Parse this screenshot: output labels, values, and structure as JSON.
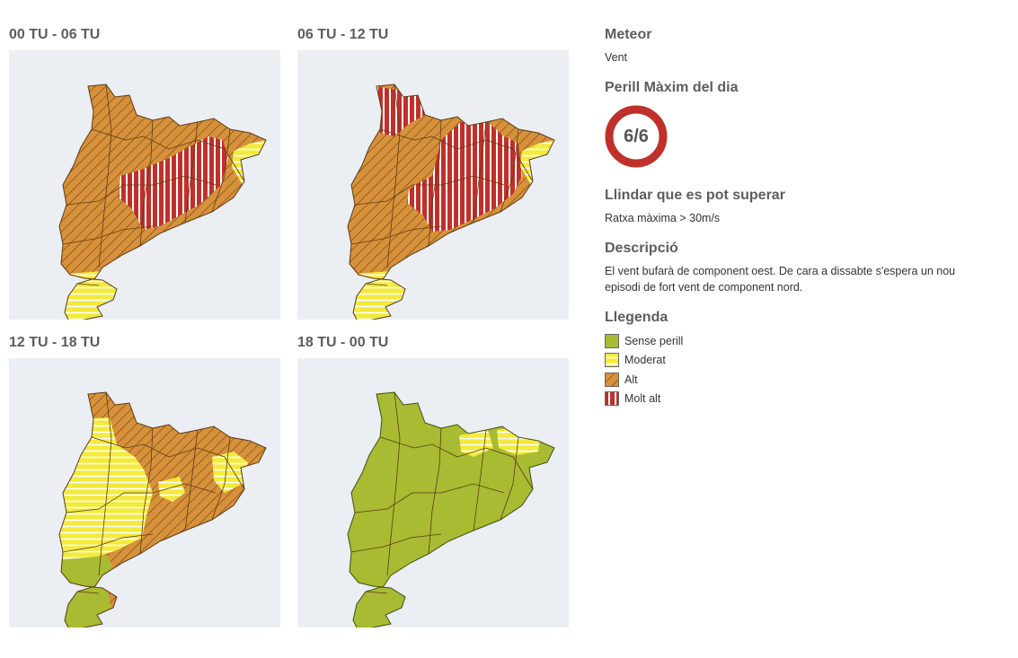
{
  "panels": [
    {
      "title": "00 TU - 06 TU"
    },
    {
      "title": "06 TU - 12 TU"
    },
    {
      "title": "12 TU - 18 TU"
    },
    {
      "title": "18 TU - 00 TU"
    }
  ],
  "info": {
    "meteor_heading": "Meteor",
    "meteor_value": "Vent",
    "danger_heading": "Perill Màxim del dia",
    "danger_value": "6/6",
    "threshold_heading": "Llindar que es pot superar",
    "threshold_value": "Ratxa màxima > 30m/s",
    "description_heading": "Descripció",
    "description_text": "El vent bufarà de component oest. De cara a dissabte s'espera un nou episodi de fort vent de component nord.",
    "legend_heading": "Llegenda"
  },
  "legend": [
    {
      "label": "Sense perill",
      "level": "none"
    },
    {
      "label": "Moderat",
      "level": "moderate"
    },
    {
      "label": "Alt",
      "level": "high"
    },
    {
      "label": "Molt alt",
      "level": "very-high"
    }
  ],
  "colors": {
    "none": "#a8bb32",
    "moderate": "#f3ea3c",
    "high": "#d7913a",
    "very-high": "#c0302b",
    "badge_ring": "#c0302b",
    "map_background": "#ebeef3"
  }
}
